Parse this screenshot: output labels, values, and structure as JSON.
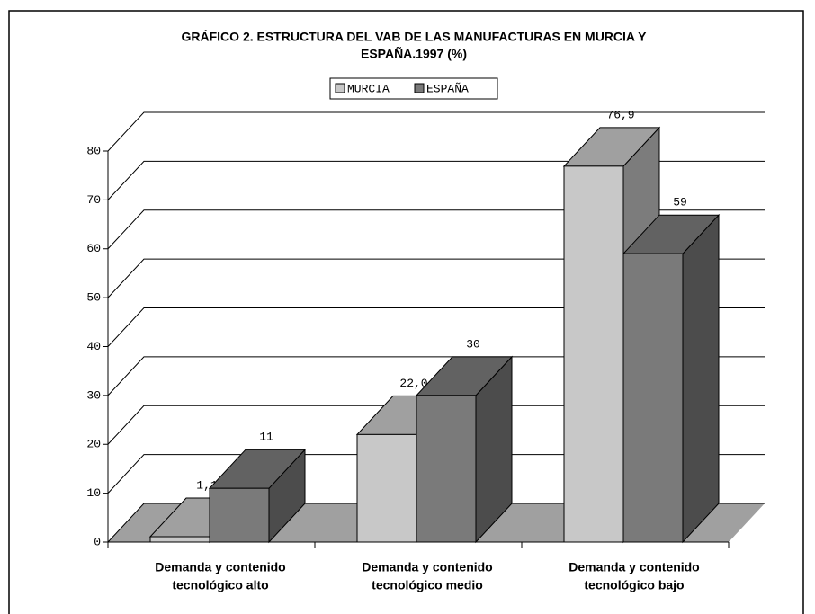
{
  "chart_data": {
    "type": "bar3d",
    "title": [
      "GRÁFICO 2. ESTRUCTURA DEL VAB DE LAS MANUFACTURAS EN MURCIA Y",
      "ESPAÑA.1997 (%)"
    ],
    "categories": [
      [
        "Demanda y contenido",
        "tecnológico alto"
      ],
      [
        "Demanda y contenido",
        "tecnológico medio"
      ],
      [
        "Demanda y contenido",
        "tecnológico bajo"
      ]
    ],
    "series": [
      {
        "name": "MURCIA",
        "color": "#c8c8c8",
        "values": [
          1.1,
          22.0,
          76.9
        ],
        "value_labels": [
          "1,1",
          "22,0",
          "76,9"
        ]
      },
      {
        "name": "ESPAÑA",
        "color": "#7a7a7a",
        "values": [
          11,
          30,
          59
        ]
      }
    ],
    "ylim": [
      0,
      80
    ],
    "yticks": [
      0,
      10,
      20,
      30,
      40,
      50,
      60,
      70,
      80
    ],
    "grid": true,
    "legend": "top"
  }
}
